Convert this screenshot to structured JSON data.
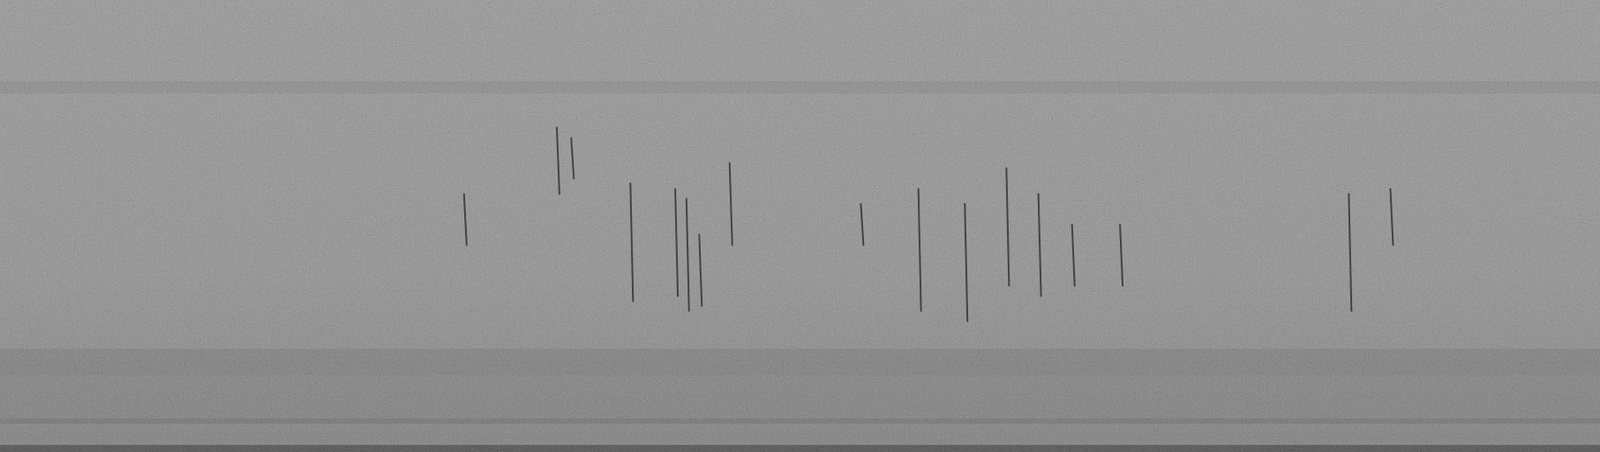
{
  "chart_data": {
    "type": "spectrogram",
    "xlim": [
      0,
      1
    ],
    "ylim": [
      0,
      1
    ],
    "tick_labels": false,
    "events": [
      {
        "t": 0.29,
        "f_low": 0.458,
        "f_high": 0.571
      },
      {
        "t": 0.348,
        "f_low": 0.571,
        "f_high": 0.718
      },
      {
        "t": 0.357,
        "f_low": 0.605,
        "f_high": 0.695
      },
      {
        "t": 0.394,
        "f_low": 0.334,
        "f_high": 0.594
      },
      {
        "t": 0.422,
        "f_low": 0.345,
        "f_high": 0.582
      },
      {
        "t": 0.429,
        "f_low": 0.312,
        "f_high": 0.56
      },
      {
        "t": 0.437,
        "f_low": 0.323,
        "f_high": 0.481
      },
      {
        "t": 0.456,
        "f_low": 0.458,
        "f_high": 0.639
      },
      {
        "t": 0.538,
        "f_low": 0.458,
        "f_high": 0.549
      },
      {
        "t": 0.574,
        "f_low": 0.312,
        "f_high": 0.582
      },
      {
        "t": 0.603,
        "f_low": 0.289,
        "f_high": 0.549
      },
      {
        "t": 0.629,
        "f_low": 0.368,
        "f_high": 0.628
      },
      {
        "t": 0.649,
        "f_low": 0.345,
        "f_high": 0.571
      },
      {
        "t": 0.67,
        "f_low": 0.368,
        "f_high": 0.503
      },
      {
        "t": 0.7,
        "f_low": 0.368,
        "f_high": 0.503
      },
      {
        "t": 0.843,
        "f_low": 0.312,
        "f_high": 0.571
      },
      {
        "t": 0.869,
        "f_low": 0.458,
        "f_high": 0.582
      }
    ]
  }
}
